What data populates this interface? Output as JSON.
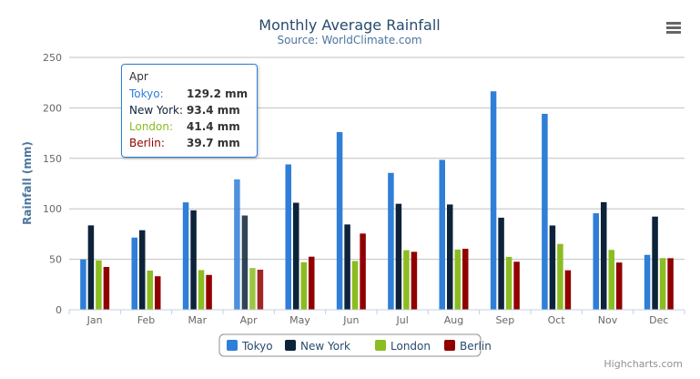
{
  "chart_data": {
    "type": "bar",
    "title": "Monthly Average Rainfall",
    "subtitle": "Source: WorldClimate.com",
    "xlabel": "",
    "ylabel": "Rainfall (mm)",
    "ylim": [
      0,
      250
    ],
    "yticks": [
      "0",
      "50",
      "100",
      "150",
      "200",
      "250"
    ],
    "grid": true,
    "legend": "bottom-center",
    "categories": [
      "Jan",
      "Feb",
      "Mar",
      "Apr",
      "May",
      "Jun",
      "Jul",
      "Aug",
      "Sep",
      "Oct",
      "Nov",
      "Dec"
    ],
    "series": [
      {
        "name": "Tokyo",
        "color": "#2f7ed8",
        "values": [
          49.9,
          71.5,
          106.4,
          129.2,
          144.0,
          176.0,
          135.6,
          148.5,
          216.4,
          194.1,
          95.6,
          54.4
        ]
      },
      {
        "name": "New York",
        "color": "#0d233a",
        "values": [
          83.6,
          78.8,
          98.5,
          93.4,
          106.0,
          84.5,
          105.0,
          104.3,
          91.2,
          83.5,
          106.6,
          92.3
        ]
      },
      {
        "name": "London",
        "color": "#8bbc21",
        "values": [
          48.9,
          38.8,
          39.3,
          41.4,
          47.0,
          48.3,
          59.0,
          59.6,
          52.4,
          65.2,
          59.3,
          51.2
        ]
      },
      {
        "name": "Berlin",
        "color": "#910000",
        "values": [
          42.4,
          33.2,
          34.5,
          39.7,
          52.6,
          75.5,
          57.4,
          60.4,
          47.6,
          39.1,
          46.8,
          51.1
        ]
      }
    ]
  },
  "tooltip": {
    "header": "Apr",
    "rows": [
      {
        "label": "Tokyo:",
        "value": "129.2 mm",
        "color": "#2f7ed8"
      },
      {
        "label": "New York:",
        "value": "93.4 mm",
        "color": "#0d233a"
      },
      {
        "label": "London:",
        "value": "41.4 mm",
        "color": "#8bbc21"
      },
      {
        "label": "Berlin:",
        "value": "39.7 mm",
        "color": "#910000"
      }
    ]
  },
  "menu_icon": "hamburger-menu-icon",
  "credits": "Highcharts.com"
}
